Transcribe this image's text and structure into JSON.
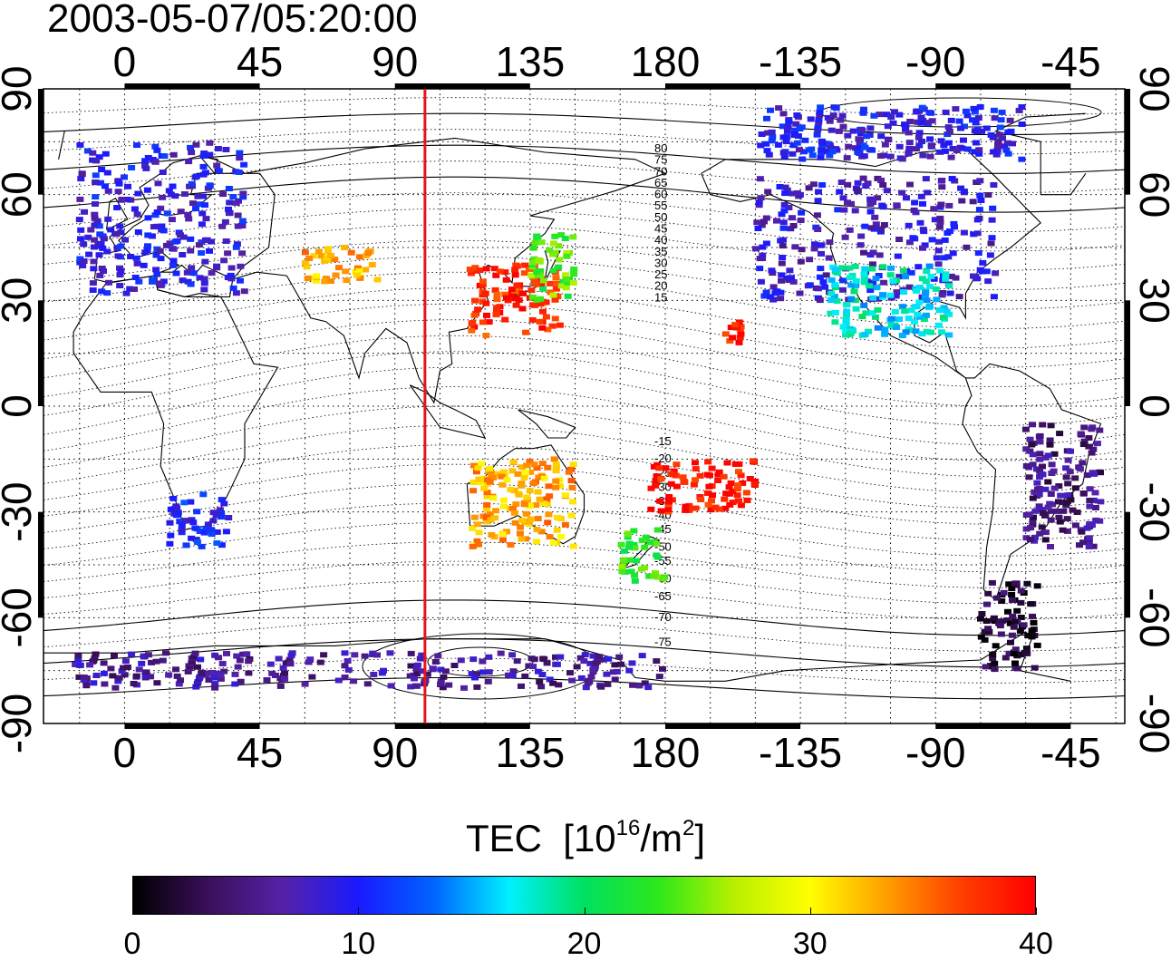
{
  "title": "2003-05-07/05:20:00",
  "map": {
    "lon_ticks": [
      "0",
      "45",
      "90",
      "135",
      "180",
      "-135",
      "-90",
      "-45"
    ],
    "lat_ticks": [
      "90",
      "60",
      "30",
      "0",
      "-30",
      "-60",
      "-90"
    ],
    "terminator_lon": 100,
    "terminator_color": "#e8121a"
  },
  "contour_labels": [
    "80",
    "75",
    "70",
    "65",
    "60",
    "55",
    "50",
    "45",
    "40",
    "35",
    "30",
    "25",
    "20",
    "15",
    "-15",
    "-20",
    "-25",
    "-30",
    "-35",
    "-40",
    "-45",
    "-50",
    "-55",
    "-60",
    "-65",
    "-70",
    "-75"
  ],
  "colorbar": {
    "title": "TEC",
    "units_prefix": "[10",
    "units_exp": "16",
    "units_mid": "/m",
    "units_exp2": "2",
    "units_suffix": "]",
    "min": 0,
    "max": 40,
    "tick_labels": [
      "0",
      "10",
      "20",
      "30",
      "40"
    ],
    "colors": [
      "#000000",
      "#3a0f5a",
      "#5522a8",
      "#1a1aff",
      "#0064ff",
      "#00f0ff",
      "#00e060",
      "#2ee81a",
      "#b8f000",
      "#ffff00",
      "#ffa000",
      "#ff4000",
      "#ff0000"
    ]
  },
  "tec_regions": [
    {
      "name": "europe",
      "lon": [
        -15,
        40
      ],
      "lat": [
        32,
        75
      ],
      "tec": 9
    },
    {
      "name": "north-america",
      "lon": [
        -150,
        -70
      ],
      "lat": [
        30,
        65
      ],
      "tec": 8
    },
    {
      "name": "north-america-south",
      "lon": [
        -125,
        -85
      ],
      "lat": [
        20,
        40
      ],
      "tec": 17
    },
    {
      "name": "east-asia",
      "lon": [
        115,
        145
      ],
      "lat": [
        20,
        40
      ],
      "tec": 38
    },
    {
      "name": "japan",
      "lon": [
        135,
        150
      ],
      "lat": [
        30,
        50
      ],
      "tec": 24
    },
    {
      "name": "central-asia",
      "lon": [
        60,
        85
      ],
      "lat": [
        35,
        45
      ],
      "tec": 33
    },
    {
      "name": "australia",
      "lon": [
        115,
        150
      ],
      "lat": [
        -40,
        -15
      ],
      "tec": 33
    },
    {
      "name": "new-zealand",
      "lon": [
        165,
        180
      ],
      "lat": [
        -50,
        -35
      ],
      "tec": 23
    },
    {
      "name": "hawaii",
      "lon": [
        -160,
        -154
      ],
      "lat": [
        18,
        24
      ],
      "tec": 39
    },
    {
      "name": "south-pacific",
      "lon": [
        175,
        -150
      ],
      "lat": [
        -30,
        -15
      ],
      "tec": 39
    },
    {
      "name": "south-america-east",
      "lon": [
        -60,
        -35
      ],
      "lat": [
        -40,
        -5
      ],
      "tec": 5
    },
    {
      "name": "patagonia",
      "lon": [
        -75,
        -55
      ],
      "lat": [
        -75,
        -50
      ],
      "tec": 2
    },
    {
      "name": "south-africa",
      "lon": [
        15,
        35
      ],
      "lat": [
        -40,
        -25
      ],
      "tec": 10
    },
    {
      "name": "antarctic-rim",
      "lon": [
        -20,
        180
      ],
      "lat": [
        -80,
        -70
      ],
      "tec": 6
    },
    {
      "name": "arctic-north-america",
      "lon": [
        -150,
        -60
      ],
      "lat": [
        70,
        85
      ],
      "tec": 9
    }
  ]
}
